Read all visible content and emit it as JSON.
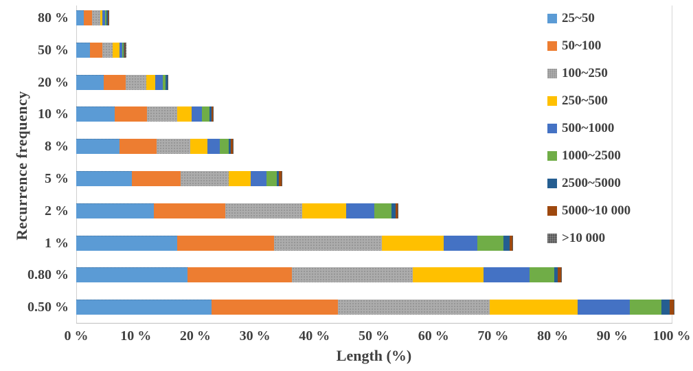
{
  "axes": {
    "x_title": "Length (%)",
    "y_title": "Recurrence frequency"
  },
  "chart_data": {
    "type": "bar",
    "orientation": "horizontal",
    "stacked": true,
    "title": "",
    "xlabel": "Length (%)",
    "ylabel": "Recurrence frequency",
    "xlim": [
      0,
      100
    ],
    "x_tick_labels": [
      "0 %",
      "10 %",
      "20 %",
      "30 %",
      "40 %",
      "50 %",
      "60 %",
      "70 %",
      "80 %",
      "90 %",
      "100 %"
    ],
    "grid": "none",
    "legend_position": "top-right",
    "categories": [
      "80 %",
      "50 %",
      "20 %",
      "10 %",
      "8 %",
      "5 %",
      "2 %",
      "1 %",
      "0.80 %",
      "0.50 %"
    ],
    "series": [
      {
        "name": "25~50",
        "color": "#5B9BD5",
        "textured": false,
        "values": [
          1.3,
          2.3,
          4.6,
          6.5,
          7.3,
          9.4,
          13.0,
          17.0,
          18.7,
          22.7
        ]
      },
      {
        "name": "50~100",
        "color": "#ED7D31",
        "textured": false,
        "values": [
          1.4,
          2.1,
          3.7,
          5.4,
          6.2,
          8.1,
          12.0,
          16.2,
          17.5,
          21.2
        ]
      },
      {
        "name": "100~250",
        "color": "#ACACAC",
        "textured": true,
        "values": [
          1.3,
          1.7,
          3.5,
          5.0,
          5.6,
          8.1,
          13.0,
          18.1,
          20.3,
          25.5
        ]
      },
      {
        "name": "250~500",
        "color": "#FFC000",
        "textured": false,
        "values": [
          0.4,
          1.2,
          1.5,
          2.5,
          2.9,
          3.7,
          7.3,
          10.4,
          11.9,
          14.8
        ]
      },
      {
        "name": "500~1000",
        "color": "#4472C4",
        "textured": false,
        "values": [
          0.5,
          0.4,
          1.2,
          1.7,
          2.1,
          2.7,
          4.8,
          5.7,
          7.7,
          8.8
        ]
      },
      {
        "name": "1000~2500",
        "color": "#70AD47",
        "textured": false,
        "values": [
          0.15,
          0.25,
          0.5,
          1.3,
          1.5,
          1.65,
          2.8,
          4.3,
          4.2,
          5.3
        ]
      },
      {
        "name": "2500~5000",
        "color": "#255E91",
        "textured": false,
        "values": [
          0.25,
          0.1,
          0.3,
          0.3,
          0.4,
          0.4,
          0.7,
          1.1,
          0.6,
          1.4
        ]
      },
      {
        "name": "5000~10 000",
        "color": "#9E480E",
        "textured": false,
        "values": [
          0.1,
          0.2,
          0.1,
          0.25,
          0.35,
          0.4,
          0.4,
          0.4,
          0.5,
          0.6
        ]
      },
      {
        "name": ">10 000",
        "color": "#5A5A5A",
        "textured": true,
        "values": [
          0.1,
          0.15,
          0.1,
          0.1,
          0.1,
          0.1,
          0.1,
          0.1,
          0.2,
          0.2
        ]
      }
    ]
  },
  "layout_colors": {
    "axis_line": "#CFCFCF",
    "gridline": "#D6D6D6",
    "text": "#404040"
  }
}
